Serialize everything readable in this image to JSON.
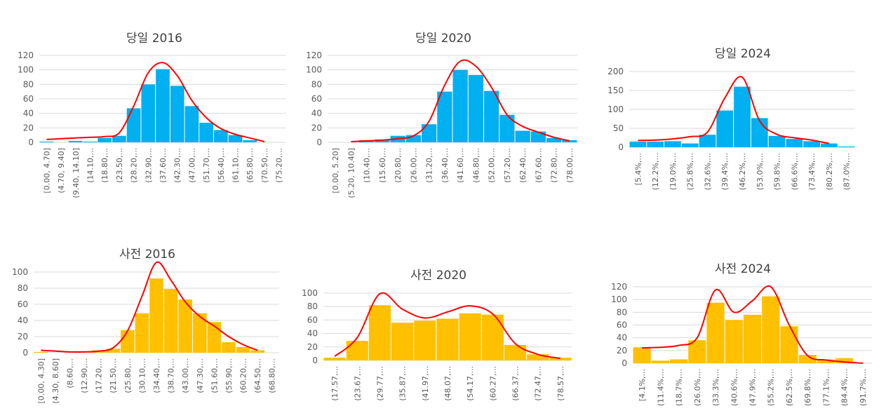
{
  "colors": {
    "blue": "#00b0f0",
    "gold": "#ffc000",
    "curve": "#ff0000",
    "grid": "#d9d9d9",
    "text": "#595959",
    "title": "#404040"
  },
  "chart_data": [
    {
      "type": "bar",
      "title": "당일 2016",
      "color": "blue",
      "categories": [
        "[0.00, 4.70]",
        "(4.70, 9.40]",
        "(9.40, 14.10]",
        "(14.10,...",
        "(18.80,...",
        "(23.50,...",
        "(28.20,...",
        "(32.90,...",
        "(37.60,...",
        "(42.30,...",
        "(47.00,...",
        "(51.70,...",
        "(56.40,...",
        "(61.10,...",
        "(65.80,...",
        "(70.50,...",
        "(75.20,..."
      ],
      "values": [
        1,
        0,
        2,
        1,
        6,
        9,
        47,
        80,
        101,
        78,
        50,
        27,
        17,
        10,
        3,
        0,
        0
      ],
      "curve": [
        4,
        5,
        6,
        7,
        8,
        13,
        50,
        96,
        110,
        92,
        58,
        34,
        19,
        11,
        6,
        1
      ],
      "ylim": [
        0,
        120
      ],
      "yticks": [
        0,
        20,
        40,
        60,
        80,
        100,
        120
      ],
      "xlabel": "",
      "ylabel": ""
    },
    {
      "type": "bar",
      "title": "당일 2020",
      "color": "blue",
      "categories": [
        "[0.00, 5.20]",
        "(5.20, 10.40]",
        "(10.40,...",
        "(15.60,...",
        "(20.80,...",
        "(26.00,...",
        "(31.20,...",
        "(36.40,...",
        "(41.60,...",
        "(46.80,...",
        "(52.00,...",
        "(57.20,...",
        "(62.40,...",
        "(67.60,...",
        "(72.80,...",
        "(78.00,..."
      ],
      "values": [
        0,
        0,
        3,
        4,
        9,
        10,
        25,
        70,
        100,
        93,
        71,
        38,
        16,
        15,
        6,
        3
      ],
      "curve": [
        null,
        1,
        2,
        3,
        5,
        9,
        29,
        79,
        112,
        105,
        76,
        38,
        22,
        14,
        7,
        2
      ],
      "ylim": [
        0,
        120
      ],
      "yticks": [
        0,
        20,
        40,
        60,
        80,
        100,
        120
      ],
      "xlabel": "",
      "ylabel": ""
    },
    {
      "type": "bar",
      "title": "당일 2024",
      "color": "blue",
      "categories": [
        "[5.4%,...",
        "(12.2%,...",
        "(19.0%,...",
        "(25.8%,...",
        "(32.6%,...",
        "(39.4%,...",
        "(46.2%,...",
        "(53.0%,...",
        "(59.8%,...",
        "(66.6%,...",
        "(73.4%,...",
        "(80.2%,...",
        "(87.0%,..."
      ],
      "values": [
        15,
        15,
        16,
        10,
        33,
        97,
        160,
        77,
        30,
        22,
        16,
        10,
        2
      ],
      "curve": [
        18,
        19,
        22,
        28,
        40,
        130,
        185,
        70,
        34,
        25,
        19,
        10
      ],
      "ylim": [
        0,
        200
      ],
      "yticks": [
        0,
        50,
        100,
        150,
        200
      ],
      "xlabel": "",
      "ylabel": ""
    },
    {
      "type": "bar",
      "title": "사전 2016",
      "color": "gold",
      "categories": [
        "[0.00, 4.30]",
        "(4.30, 8.60]",
        "(8.60,...",
        "(12.90,...",
        "(17.20,...",
        "(21.50,...",
        "(25.80,...",
        "(30.10,...",
        "(34.40,...",
        "(38.70,...",
        "(43.00,...",
        "(47.30,...",
        "(51.60,...",
        "(55.90,...",
        "(60.20,...",
        "(64.50,...",
        "(68.80,..."
      ],
      "values": [
        1,
        0,
        0,
        0,
        3,
        5,
        28,
        49,
        92,
        79,
        66,
        49,
        38,
        13,
        7,
        3,
        0
      ],
      "curve": [
        3,
        2,
        1,
        1,
        2,
        6,
        27,
        70,
        112,
        90,
        63,
        45,
        33,
        20,
        10,
        3
      ],
      "ylim": [
        0,
        100
      ],
      "yticks": [
        0,
        20,
        40,
        60,
        80,
        100
      ],
      "xlabel": "",
      "ylabel": ""
    },
    {
      "type": "bar",
      "title": "사전 2020",
      "color": "gold",
      "categories": [
        "(17.57,...",
        "(23.67,...",
        "(29.77,...",
        "(35.87,...",
        "(41.97,...",
        "(48.07,...",
        "(54.17,...",
        "(60.27,...",
        "(66.37,...",
        "(72.47,...",
        "(78.57,..."
      ],
      "values": [
        4,
        29,
        82,
        56,
        59,
        62,
        70,
        68,
        23,
        9,
        4
      ],
      "curve": [
        6,
        34,
        99,
        76,
        63,
        72,
        81,
        69,
        25,
        9,
        3
      ],
      "ylim": [
        0,
        100
      ],
      "yticks": [
        0,
        20,
        40,
        60,
        80,
        100
      ],
      "xlabel": "",
      "ylabel": ""
    },
    {
      "type": "bar",
      "title": "사전 2024",
      "color": "gold",
      "categories": [
        "[4.1%,...",
        "(11.4%,...",
        "(18.7%,...",
        "(26.0%,...",
        "(33.3%,...",
        "(40.6%,...",
        "(47.9%,...",
        "(55.2%,...",
        "(62.5%,...",
        "(69.8%,...",
        "(77.1%,...",
        "(84.4%,...",
        "(91.7%,..."
      ],
      "values": [
        25,
        4,
        6,
        36,
        95,
        68,
        76,
        105,
        58,
        13,
        6,
        8,
        0
      ],
      "curve": [
        24,
        25,
        28,
        40,
        115,
        80,
        98,
        120,
        60,
        12,
        5,
        2,
        0
      ],
      "ylim": [
        0,
        120
      ],
      "yticks": [
        0,
        20,
        40,
        60,
        80,
        100,
        120
      ],
      "xlabel": "",
      "ylabel": ""
    }
  ]
}
